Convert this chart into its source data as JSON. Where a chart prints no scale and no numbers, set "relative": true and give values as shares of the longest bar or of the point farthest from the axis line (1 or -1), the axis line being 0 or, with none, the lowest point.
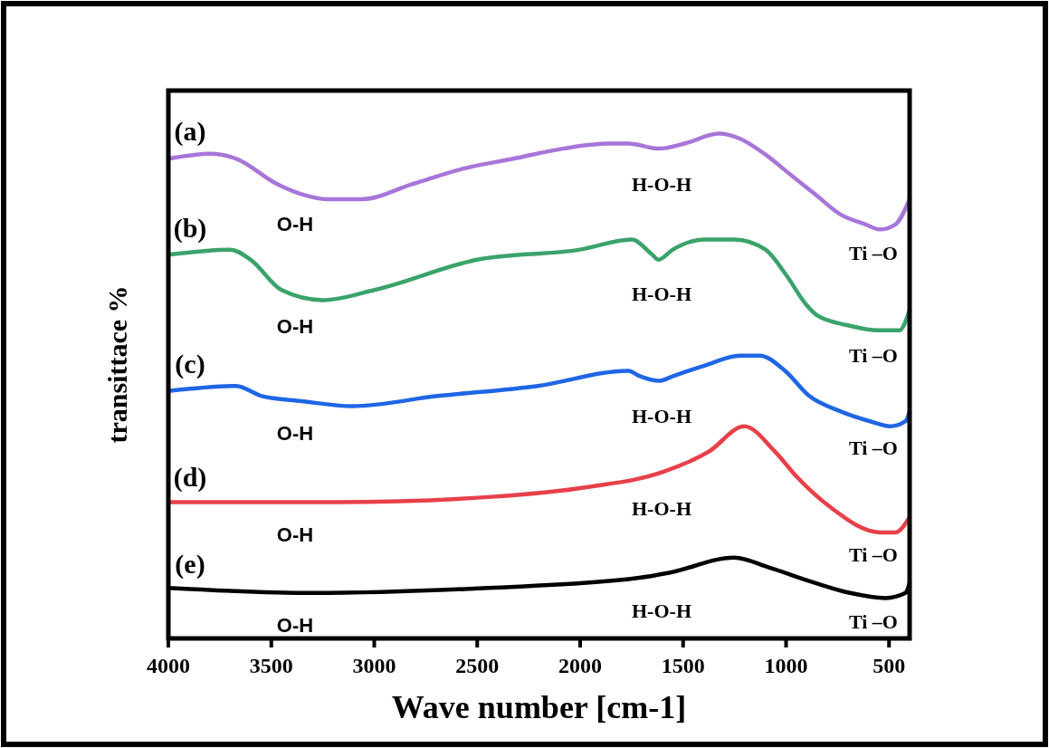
{
  "chart_data": {
    "type": "line",
    "relative": true,
    "xlabel": "Wave number [cm-1]",
    "ylabel": "transittace %",
    "xlim": [
      4000,
      400
    ],
    "xticks": [
      4000,
      3500,
      3000,
      2500,
      2000,
      1500,
      1000,
      500
    ],
    "grid": false,
    "marker": "none",
    "line_style": "solid",
    "series": [
      {
        "color": "#a875d9",
        "x": [
          4000,
          3793,
          3670,
          3472,
          3354,
          3230,
          3059,
          2813,
          2571,
          2325,
          2083,
          1863,
          1766,
          1616,
          1493,
          1326,
          1225,
          1106,
          983,
          860,
          737,
          614,
          544,
          469,
          400
        ],
        "values": [
          0.95,
          0.96,
          0.95,
          0.9,
          0.88,
          0.87,
          0.87,
          0.9,
          0.93,
          0.95,
          0.97,
          0.98,
          0.98,
          0.97,
          0.98,
          1.0,
          0.99,
          0.96,
          0.92,
          0.88,
          0.84,
          0.82,
          0.81,
          0.82,
          0.87
        ]
      },
      {
        "color": "#3aa36b",
        "x": [
          4000,
          3700,
          3600,
          3450,
          3250,
          3000,
          2500,
          2000,
          1750,
          1650,
          1620,
          1550,
          1400,
          1250,
          1100,
          1000,
          900,
          850,
          700,
          550,
          450,
          400
        ],
        "values": [
          0.76,
          0.77,
          0.75,
          0.69,
          0.67,
          0.69,
          0.75,
          0.77,
          0.79,
          0.76,
          0.75,
          0.77,
          0.79,
          0.79,
          0.77,
          0.72,
          0.66,
          0.64,
          0.62,
          0.61,
          0.61,
          0.65
        ]
      },
      {
        "color": "#1f66e5",
        "x": [
          4000,
          3670,
          3547,
          3354,
          3107,
          2694,
          2206,
          1766,
          1713,
          1616,
          1546,
          1397,
          1225,
          1128,
          1005,
          887,
          737,
          592,
          495,
          420,
          400
        ],
        "values": [
          0.49,
          0.5,
          0.48,
          0.47,
          0.46,
          0.48,
          0.5,
          0.53,
          0.52,
          0.51,
          0.52,
          0.54,
          0.56,
          0.56,
          0.53,
          0.48,
          0.45,
          0.43,
          0.42,
          0.43,
          0.45
        ]
      },
      {
        "color": "#e8404a",
        "x": [
          4000,
          3182,
          2448,
          1960,
          1595,
          1375,
          1203,
          1054,
          948,
          785,
          544,
          469,
          400
        ],
        "values": [
          0.27,
          0.27,
          0.28,
          0.3,
          0.33,
          0.37,
          0.42,
          0.37,
          0.32,
          0.26,
          0.21,
          0.21,
          0.24
        ]
      },
      {
        "color": "#000000",
        "x": [
          4000,
          3305,
          2448,
          1713,
          1568,
          1252,
          1080,
          860,
          689,
          517,
          420,
          400
        ],
        "values": [
          0.1,
          0.09,
          0.1,
          0.12,
          0.13,
          0.16,
          0.14,
          0.11,
          0.09,
          0.08,
          0.09,
          0.11
        ]
      }
    ],
    "annotations": [
      "(a)",
      "O-H",
      "H-O-H",
      "Ti –O",
      "(b)",
      "O-H",
      "H-O-H",
      "Ti –O",
      "(c)",
      "O-H",
      "H-O-H",
      "Ti –O",
      "(d)",
      "O-H",
      "H-O-H",
      "Ti –O",
      "(e)",
      "O-H",
      "H-O-H",
      "Ti –O"
    ]
  }
}
